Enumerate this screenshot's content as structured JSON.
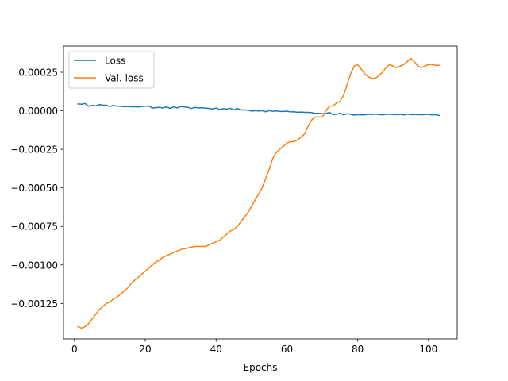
{
  "chart_data": {
    "type": "line",
    "title": "",
    "xlabel": "Epochs",
    "ylabel": "",
    "xlim": [
      -3.1,
      108.1
    ],
    "ylim": [
      -0.00148,
      0.00042
    ],
    "xticks": [
      0,
      20,
      40,
      60,
      80,
      100
    ],
    "xtick_labels": [
      "0",
      "20",
      "40",
      "60",
      "80",
      "100"
    ],
    "yticks": [
      -0.00125,
      -0.001,
      -0.00075,
      -0.0005,
      -0.00025,
      0.0,
      0.00025
    ],
    "ytick_labels": [
      "−0.00125",
      "−0.00100",
      "−0.00075",
      "−0.00050",
      "−0.00025",
      "0.00000",
      "0.00025"
    ],
    "grid": false,
    "legend_position": "top-left",
    "series": [
      {
        "name": "Loss",
        "color": "#1f77b4",
        "x": [
          1,
          2,
          3,
          4,
          5,
          6,
          7,
          8,
          9,
          10,
          11,
          12,
          13,
          14,
          15,
          16,
          17,
          18,
          19,
          20,
          21,
          22,
          23,
          24,
          25,
          26,
          27,
          28,
          29,
          30,
          31,
          32,
          33,
          34,
          35,
          36,
          37,
          38,
          39,
          40,
          41,
          42,
          43,
          44,
          45,
          46,
          47,
          48,
          49,
          50,
          51,
          52,
          53,
          54,
          55,
          56,
          57,
          58,
          59,
          60,
          61,
          62,
          63,
          64,
          65,
          66,
          67,
          68,
          69,
          70,
          71,
          72,
          73,
          74,
          75,
          76,
          77,
          78,
          79,
          80,
          81,
          82,
          83,
          84,
          85,
          86,
          87,
          88,
          89,
          90,
          91,
          92,
          93,
          94,
          95,
          96,
          97,
          98,
          99,
          100,
          101,
          102,
          103
        ],
        "values": [
          4.5e-05,
          4.3e-05,
          4.7e-05,
          3e-05,
          3.5e-05,
          3.2e-05,
          4e-05,
          3.7e-05,
          3.6e-05,
          2.8e-05,
          3.5e-05,
          3e-05,
          3e-05,
          2.7e-05,
          2.8e-05,
          2.6e-05,
          2.7e-05,
          2.5e-05,
          2.8e-05,
          3e-05,
          3.2e-05,
          1.8e-05,
          2.1e-05,
          2.2e-05,
          1.8e-05,
          2.6e-05,
          1.6e-05,
          2.5e-05,
          1.9e-05,
          2.8e-05,
          2.5e-05,
          2.3e-05,
          1.5e-05,
          2.2e-05,
          1.9e-05,
          1.9e-05,
          1.8e-05,
          1.5e-05,
          1.2e-05,
          1.8e-05,
          8e-06,
          1.4e-05,
          1.1e-05,
          1.6e-05,
          6e-06,
          1.6e-05,
          5e-06,
          6e-06,
          4e-06,
          -2e-06,
          1e-06,
          -1e-06,
          1e-06,
          -6e-06,
          1e-06,
          -3e-06,
          -1e-06,
          -4e-06,
          -4e-06,
          -2e-06,
          -7e-06,
          -6e-06,
          -9e-06,
          -8e-06,
          -1e-05,
          -1e-05,
          -1.2e-05,
          -1.7e-05,
          -1.6e-05,
          -1.9e-05,
          -1.8e-05,
          -1e-05,
          -2.5e-05,
          -2.2e-05,
          -1.6e-05,
          -2.6e-05,
          -1.9e-05,
          -2.3e-05,
          -2.8e-05,
          -2.5e-05,
          -2.6e-05,
          -2.6e-05,
          -2.2e-05,
          -2.4e-05,
          -2.1e-05,
          -2.4e-05,
          -2.6e-05,
          -2.3e-05,
          -2.2e-05,
          -2.4e-05,
          -2.4e-05,
          -2.3e-05,
          -2.7e-05,
          -2.1e-05,
          -2.5e-05,
          -2.5e-05,
          -2.4e-05,
          -2.6e-05,
          -2.4e-05,
          -2.3e-05,
          -2.7e-05,
          -2.5e-05,
          -3e-05
        ]
      },
      {
        "name": "Val. loss",
        "color": "#ff7f0e",
        "x": [
          1,
          2,
          3,
          4,
          5,
          6,
          7,
          8,
          9,
          10,
          11,
          12,
          13,
          14,
          15,
          16,
          17,
          18,
          19,
          20,
          21,
          22,
          23,
          24,
          25,
          26,
          27,
          28,
          29,
          30,
          31,
          32,
          33,
          34,
          35,
          36,
          37,
          38,
          39,
          40,
          41,
          42,
          43,
          44,
          45,
          46,
          47,
          48,
          49,
          50,
          51,
          52,
          53,
          54,
          55,
          56,
          57,
          58,
          59,
          60,
          61,
          62,
          63,
          64,
          65,
          66,
          67,
          68,
          69,
          70,
          71,
          72,
          73,
          74,
          75,
          76,
          77,
          78,
          79,
          80,
          81,
          82,
          83,
          84,
          85,
          86,
          87,
          88,
          89,
          90,
          91,
          92,
          93,
          94,
          95,
          96,
          97,
          98,
          99,
          100,
          101,
          102,
          103
        ],
        "values": [
          -0.0014,
          -0.00141,
          -0.0014,
          -0.00138,
          -0.00135,
          -0.00132,
          -0.00129,
          -0.00127,
          -0.00125,
          -0.00124,
          -0.00122,
          -0.00121,
          -0.00119,
          -0.00117,
          -0.00115,
          -0.00112,
          -0.0011,
          -0.00108,
          -0.00106,
          -0.00104,
          -0.00102,
          -0.001,
          -0.00098,
          -0.00097,
          -0.00095,
          -0.00094,
          -0.00093,
          -0.00092,
          -0.00091,
          -0.0009,
          -0.000895,
          -0.00089,
          -0.000885,
          -0.00088,
          -0.00088,
          -0.00088,
          -0.00088,
          -0.00087,
          -0.00086,
          -0.00085,
          -0.00084,
          -0.00082,
          -0.0008,
          -0.00078,
          -0.00077,
          -0.00075,
          -0.00072,
          -0.00069,
          -0.00066,
          -0.00062,
          -0.00058,
          -0.00054,
          -0.0005,
          -0.00044,
          -0.00038,
          -0.00031,
          -0.00027,
          -0.00025,
          -0.00023,
          -0.00021,
          -0.0002,
          -0.0002,
          -0.00019,
          -0.00017,
          -0.00015,
          -0.0001,
          -6e-05,
          -4e-05,
          -4e-05,
          -4e-05,
          0.0,
          3e-05,
          3e-05,
          5e-05,
          6e-05,
          0.0001,
          0.00017,
          0.00024,
          0.00029,
          0.0003,
          0.00027,
          0.00024,
          0.00022,
          0.00021,
          0.00021,
          0.00023,
          0.00025,
          0.00028,
          0.0003,
          0.00029,
          0.00028,
          0.00029,
          0.0003,
          0.00032,
          0.00034,
          0.00032,
          0.00029,
          0.00028,
          0.00029,
          0.0003,
          0.0003,
          0.000295,
          0.000295
        ]
      }
    ]
  }
}
